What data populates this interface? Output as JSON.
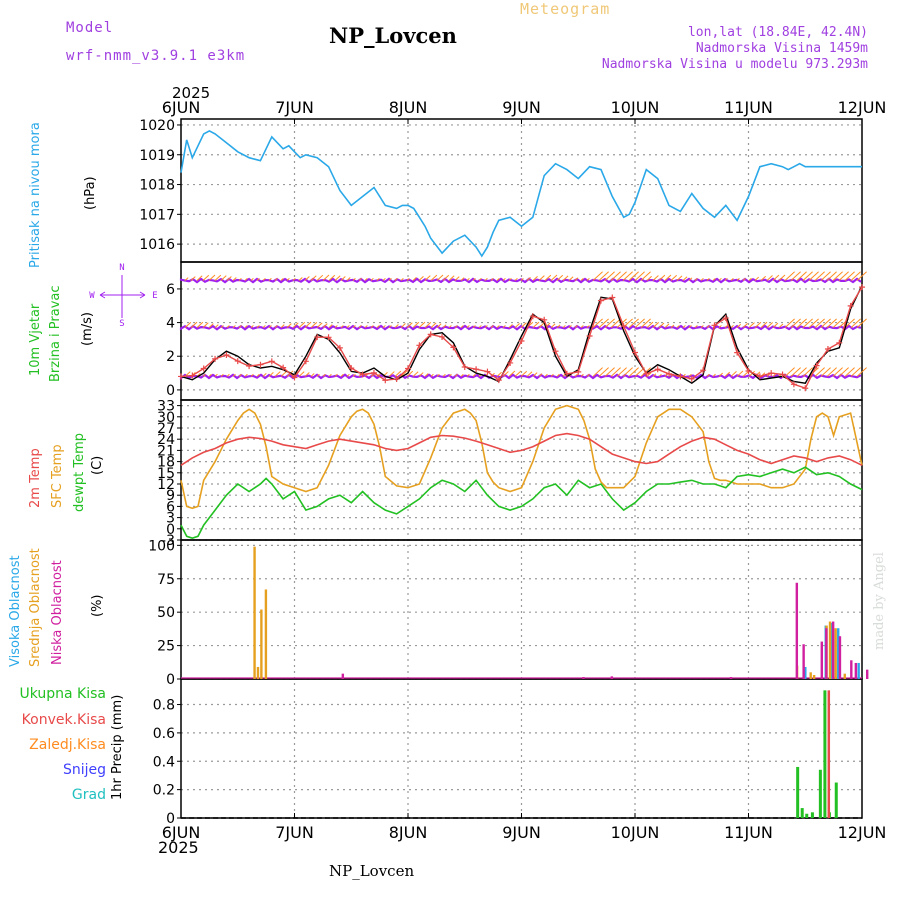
{
  "header": {
    "model_label": "Model",
    "model_name": "wrf-nmm_v3.9.1 e3km",
    "title": "NP_Lovcen",
    "meteogram_label": "Meteogram",
    "lonlat": "lon,lat (18.84E, 42.4N)",
    "altitude": "Nadmorska Visina 1459m",
    "model_altitude": "Nadmorska Visina u modelu 973.293m",
    "year_top": "2025",
    "year_bottom": "2025",
    "footer_title": "NP_Lovcen",
    "credit": "made by Angel"
  },
  "colors": {
    "pressure": "#2aa8e8",
    "wind_label": "#2ecc40",
    "wind_dir": "#a020f0",
    "t2m": "#e84a4a",
    "sfc": "#e6a020",
    "dewpt": "#22c022",
    "high_cloud": "#2aa8e8",
    "mid_cloud": "#e6a020",
    "low_cloud": "#d020a0",
    "total_precip": "#22c022",
    "conv_precip": "#e84a4a",
    "frozen": "#ff8c20",
    "snow": "#4040ff",
    "hail": "#20c0c0"
  },
  "chart_data": [
    {
      "type": "line",
      "panel": "pressure",
      "title": "Pritisak na nivou mora",
      "ylabel": "(hPa)",
      "ylim": [
        1015.4,
        1020.2
      ],
      "yticks": [
        "1016",
        "1017",
        "1018",
        "1019",
        "1020"
      ],
      "x_ticks": [
        "6JUN",
        "7JUN",
        "8JUN",
        "9JUN",
        "10JUN",
        "11JUN",
        "12JUN"
      ],
      "x_range_days": [
        0,
        6
      ],
      "series": [
        {
          "name": "MSLP",
          "x": [
            0,
            0.05,
            0.1,
            0.15,
            0.2,
            0.25,
            0.3,
            0.4,
            0.5,
            0.6,
            0.7,
            0.75,
            0.8,
            0.9,
            0.95,
            1.0,
            1.05,
            1.1,
            1.2,
            1.3,
            1.4,
            1.5,
            1.6,
            1.7,
            1.8,
            1.9,
            1.95,
            2.0,
            2.05,
            2.1,
            2.15,
            2.2,
            2.3,
            2.4,
            2.5,
            2.6,
            2.65,
            2.7,
            2.75,
            2.8,
            2.9,
            3.0,
            3.1,
            3.2,
            3.3,
            3.4,
            3.5,
            3.6,
            3.7,
            3.8,
            3.9,
            3.95,
            4.0,
            4.1,
            4.2,
            4.3,
            4.4,
            4.5,
            4.6,
            4.7,
            4.8,
            4.9,
            5.0,
            5.1,
            5.2,
            5.3,
            5.35,
            5.4,
            5.45,
            5.5,
            5.6,
            5.7,
            5.8,
            5.85,
            5.9,
            6.0
          ],
          "y": [
            1018.4,
            1019.5,
            1018.9,
            1019.3,
            1019.7,
            1019.8,
            1019.7,
            1019.4,
            1019.1,
            1018.9,
            1018.8,
            1019.2,
            1019.6,
            1019.2,
            1019.3,
            1019.1,
            1018.9,
            1019.0,
            1018.9,
            1018.6,
            1017.8,
            1017.3,
            1017.6,
            1017.9,
            1017.3,
            1017.2,
            1017.3,
            1017.3,
            1017.2,
            1016.9,
            1016.6,
            1016.2,
            1015.7,
            1016.1,
            1016.3,
            1015.9,
            1015.6,
            1015.9,
            1016.4,
            1016.8,
            1016.9,
            1016.6,
            1016.9,
            1018.3,
            1018.7,
            1018.5,
            1018.2,
            1018.6,
            1018.5,
            1017.6,
            1016.9,
            1017.0,
            1017.4,
            1018.5,
            1018.2,
            1017.3,
            1017.1,
            1017.7,
            1017.2,
            1016.9,
            1017.3,
            1016.8,
            1017.6,
            1018.6,
            1018.7,
            1018.6,
            1018.5,
            1018.6,
            1018.7,
            1018.6,
            1018.6,
            1018.6,
            1018.6,
            1018.6,
            1018.6,
            1018.6
          ]
        }
      ]
    },
    {
      "type": "line",
      "panel": "wind",
      "title": "10m Vjetar",
      "subtitle": "Brzina i Pravac",
      "ylabel": "(m/s)",
      "ylim": [
        -0.6,
        7.6
      ],
      "yticks": [
        "0",
        "2",
        "4",
        "6"
      ],
      "compass": {
        "w": "W",
        "e": "E",
        "s": "S",
        "n": "N"
      },
      "series": [
        {
          "name": "Brzina (speed)",
          "x": [
            0,
            0.1,
            0.2,
            0.3,
            0.4,
            0.5,
            0.6,
            0.7,
            0.8,
            0.9,
            1.0,
            1.1,
            1.2,
            1.3,
            1.4,
            1.5,
            1.6,
            1.7,
            1.8,
            1.9,
            2.0,
            2.1,
            2.2,
            2.3,
            2.4,
            2.5,
            2.6,
            2.7,
            2.8,
            2.9,
            3.0,
            3.1,
            3.2,
            3.3,
            3.4,
            3.5,
            3.6,
            3.7,
            3.8,
            3.9,
            4.0,
            4.1,
            4.2,
            4.3,
            4.4,
            4.5,
            4.6,
            4.7,
            4.8,
            4.9,
            5.0,
            5.1,
            5.2,
            5.3,
            5.4,
            5.5,
            5.6,
            5.7,
            5.8,
            5.9,
            6.0
          ],
          "y": [
            0.8,
            0.6,
            1.0,
            1.8,
            2.3,
            2.0,
            1.5,
            1.3,
            1.4,
            1.2,
            0.9,
            2.0,
            3.3,
            3.0,
            2.2,
            1.1,
            1.0,
            1.3,
            0.8,
            0.6,
            1.0,
            2.4,
            3.3,
            3.4,
            2.8,
            1.4,
            1.0,
            0.8,
            0.5,
            1.8,
            3.2,
            4.5,
            4.0,
            2.0,
            0.8,
            1.2,
            3.5,
            5.5,
            5.4,
            3.5,
            2.0,
            1.0,
            1.5,
            1.2,
            0.8,
            0.4,
            0.9,
            3.8,
            4.5,
            2.5,
            1.2,
            0.6,
            0.7,
            0.8,
            0.5,
            0.4,
            1.6,
            2.3,
            2.5,
            4.8,
            6.2
          ]
        },
        {
          "name": "Pravac (direction markers)",
          "x": [
            0,
            0.5,
            1.0,
            1.5,
            2.0,
            2.5,
            3.0,
            3.5,
            4.0,
            4.5,
            5.0,
            5.5,
            6.0
          ],
          "y": [
            6.6,
            6.6,
            6.5,
            6.4,
            6.5,
            6.7,
            6.5,
            6.3,
            6.2,
            6.3,
            6.4,
            6.5,
            6.5
          ]
        }
      ]
    },
    {
      "type": "line",
      "panel": "temperature",
      "labels": [
        "2m Temp",
        "SFC Temp",
        "dewpt Temp"
      ],
      "ylabel": "(C)",
      "ylim": [
        -3,
        34.5
      ],
      "yticks": [
        "-3",
        "0",
        "3",
        "6",
        "9",
        "12",
        "15",
        "18",
        "21",
        "24",
        "27",
        "30",
        "33"
      ],
      "series": [
        {
          "name": "2m Temp",
          "x": [
            0,
            0.1,
            0.2,
            0.3,
            0.4,
            0.5,
            0.6,
            0.7,
            0.8,
            0.9,
            1.0,
            1.1,
            1.2,
            1.3,
            1.4,
            1.5,
            1.6,
            1.7,
            1.8,
            1.9,
            2.0,
            2.1,
            2.2,
            2.3,
            2.4,
            2.5,
            2.6,
            2.7,
            2.8,
            2.9,
            3.0,
            3.1,
            3.2,
            3.3,
            3.4,
            3.5,
            3.6,
            3.7,
            3.8,
            3.9,
            4.0,
            4.1,
            4.2,
            4.3,
            4.4,
            4.5,
            4.6,
            4.7,
            4.8,
            4.9,
            5.0,
            5.1,
            5.2,
            5.3,
            5.4,
            5.5,
            5.6,
            5.7,
            5.8,
            5.9,
            6.0
          ],
          "y": [
            17,
            19,
            20.5,
            21.5,
            23,
            24,
            24.5,
            24.2,
            23.5,
            22.5,
            22,
            21.5,
            22.5,
            23.5,
            24,
            23.5,
            23,
            22.5,
            21.5,
            21,
            21.5,
            23,
            24.5,
            25,
            24.8,
            24.3,
            23.5,
            22.5,
            21.5,
            20.5,
            21,
            22,
            23.5,
            25,
            25.5,
            25,
            24,
            22,
            20,
            19,
            18,
            17.5,
            18,
            20,
            22,
            23.5,
            24.5,
            24,
            22.5,
            21,
            20,
            18.5,
            17.5,
            18.5,
            19.5,
            19,
            18,
            19,
            19.5,
            18.5,
            17
          ]
        },
        {
          "name": "SFC Temp",
          "x": [
            0,
            0.05,
            0.1,
            0.15,
            0.2,
            0.3,
            0.4,
            0.5,
            0.55,
            0.6,
            0.65,
            0.7,
            0.75,
            0.8,
            0.9,
            1.0,
            1.1,
            1.2,
            1.3,
            1.4,
            1.5,
            1.55,
            1.6,
            1.65,
            1.7,
            1.75,
            1.8,
            1.9,
            2.0,
            2.1,
            2.2,
            2.3,
            2.4,
            2.5,
            2.55,
            2.6,
            2.65,
            2.7,
            2.75,
            2.8,
            2.9,
            3.0,
            3.1,
            3.2,
            3.3,
            3.4,
            3.5,
            3.55,
            3.6,
            3.65,
            3.7,
            3.75,
            3.8,
            3.9,
            4.0,
            4.1,
            4.2,
            4.3,
            4.4,
            4.5,
            4.6,
            4.65,
            4.7,
            4.75,
            4.8,
            4.9,
            5.0,
            5.1,
            5.2,
            5.3,
            5.4,
            5.5,
            5.55,
            5.6,
            5.65,
            5.7,
            5.75,
            5.8,
            5.9,
            6.0
          ],
          "y": [
            13,
            6,
            5.5,
            6,
            13,
            18,
            24,
            29,
            31,
            32,
            31,
            28,
            22,
            14,
            12,
            11,
            10,
            11,
            17,
            25,
            30,
            31.5,
            32,
            31,
            28,
            22,
            14,
            11.5,
            11,
            12,
            19,
            27,
            31,
            32,
            31,
            29,
            23,
            15,
            12.5,
            11,
            10,
            11,
            18,
            27,
            32,
            33,
            32,
            29,
            24,
            16,
            12.5,
            11,
            11,
            11,
            14,
            23,
            30,
            32,
            32,
            30,
            26,
            18,
            13.5,
            13,
            13,
            12,
            12,
            12,
            11,
            11,
            12,
            16,
            24,
            30,
            31,
            30,
            25,
            30,
            31,
            17
          ]
        },
        {
          "name": "dewpt Temp",
          "x": [
            0,
            0.05,
            0.1,
            0.15,
            0.2,
            0.3,
            0.4,
            0.5,
            0.6,
            0.7,
            0.75,
            0.8,
            0.9,
            1.0,
            1.1,
            1.2,
            1.3,
            1.4,
            1.5,
            1.6,
            1.7,
            1.8,
            1.9,
            2.0,
            2.1,
            2.2,
            2.3,
            2.4,
            2.5,
            2.6,
            2.7,
            2.8,
            2.9,
            3.0,
            3.1,
            3.2,
            3.3,
            3.4,
            3.5,
            3.6,
            3.7,
            3.8,
            3.9,
            4.0,
            4.1,
            4.2,
            4.3,
            4.4,
            4.5,
            4.6,
            4.7,
            4.8,
            4.9,
            5.0,
            5.1,
            5.2,
            5.3,
            5.4,
            5.5,
            5.6,
            5.7,
            5.8,
            5.9,
            6.0
          ],
          "y": [
            1,
            -2,
            -2.5,
            -2,
            1,
            5,
            9,
            12,
            10,
            12,
            13.5,
            12,
            8,
            10,
            5,
            6,
            8,
            9,
            7,
            10,
            7,
            5,
            4,
            6,
            8,
            11,
            13,
            12,
            10,
            13,
            9,
            6,
            5,
            6,
            8,
            11,
            12,
            9,
            13,
            11,
            12,
            8,
            5,
            7,
            10,
            12,
            12,
            12.5,
            13,
            12,
            12,
            11,
            14,
            14.5,
            14,
            15,
            16,
            15,
            16.5,
            14.5,
            15,
            14,
            12,
            10.5
          ]
        }
      ]
    },
    {
      "type": "bar",
      "panel": "clouds",
      "labels": [
        "Visoka Oblacnost",
        "Srednja Oblacnost",
        "Niska Oblacnost"
      ],
      "ylabel": "(%)",
      "ylim": [
        0,
        104
      ],
      "yticks": [
        "0",
        "25",
        "50",
        "75",
        "100"
      ],
      "series": [
        {
          "name": "Visoka",
          "x": [
            5.49,
            5.67,
            5.72,
            5.78,
            5.96
          ],
          "values": [
            9,
            40,
            42,
            38,
            12
          ]
        },
        {
          "name": "Srednja",
          "x": [
            0.62,
            0.65,
            0.68,
            0.72,
            5.4,
            5.52,
            5.55,
            5.66,
            5.69,
            5.74,
            5.82
          ],
          "values": [
            99,
            9,
            52,
            67,
            10,
            5,
            3,
            40,
            43,
            38,
            4
          ]
        },
        {
          "name": "Niska",
          "x": [
            1.38,
            3.5,
            3.75,
            4.8,
            5.38,
            5.44,
            5.6,
            5.64,
            5.7,
            5.76,
            5.86,
            5.9,
            6.0
          ],
          "values": [
            4,
            1.5,
            2,
            1.5,
            72,
            26,
            28,
            38,
            43,
            32,
            14,
            12,
            7
          ]
        }
      ]
    },
    {
      "type": "bar",
      "panel": "precip",
      "labels": [
        "Ukupna Kisa",
        "Konvek.Kisa",
        "Zaledj.Kisa",
        "Snijeg",
        "Grad"
      ],
      "ylabel": "1hr Precip (mm)",
      "ylim": [
        0,
        0.98
      ],
      "yticks": [
        "0",
        "0.2",
        "0.4",
        "0.6",
        "0.8"
      ],
      "series": [
        {
          "name": "Ukupna Kisa",
          "x": [
            5.42,
            5.46,
            5.5,
            5.55,
            5.62,
            5.66,
            5.7,
            5.76
          ],
          "values": [
            0.36,
            0.07,
            0.03,
            0.04,
            0.34,
            0.9,
            0.04,
            0.25
          ]
        },
        {
          "name": "Konvek.Kisa",
          "x": [
            5.67
          ],
          "values": [
            0.9
          ]
        }
      ]
    }
  ]
}
